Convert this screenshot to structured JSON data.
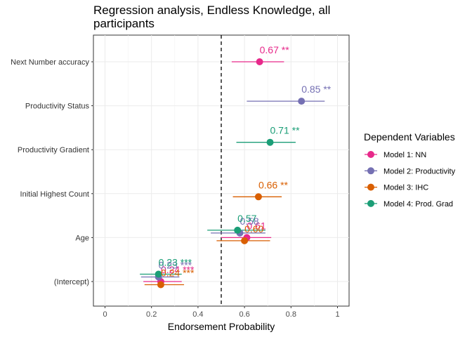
{
  "chart_data": {
    "type": "scatter",
    "title_lines": [
      "Regression analysis, Endless Knowledge, all",
      "participants"
    ],
    "xlabel": "Endorsement Probability",
    "ylabel": "",
    "xlim": [
      0,
      1
    ],
    "xticks": [
      "0",
      "0.2",
      "0.4",
      "0.6",
      "0.8",
      "1"
    ],
    "reference_line_x": 0.5,
    "grid": true,
    "categories": [
      "Next Number accuracy",
      "Productivity Status",
      "Productivity Gradient",
      "Initial Highest Count",
      "Age",
      "(Intercept)"
    ],
    "legend_title": "Dependent Variables",
    "legend_position": "right",
    "series": [
      {
        "name": "Model 1: NN",
        "color": "#e7298a",
        "points": [
          {
            "category": "Next Number accuracy",
            "x": 0.665,
            "lo": 0.545,
            "hi": 0.77,
            "label": "0.67 **"
          },
          {
            "category": "Age",
            "x": 0.61,
            "lo": 0.5,
            "hi": 0.715,
            "label": "0.61"
          },
          {
            "category": "(Intercept)",
            "x": 0.24,
            "lo": 0.165,
            "hi": 0.33,
            "label": "0.24 ***"
          }
        ]
      },
      {
        "name": "Model 2: Productivity",
        "color": "#7570b3",
        "points": [
          {
            "category": "Productivity Status",
            "x": 0.845,
            "lo": 0.61,
            "hi": 0.945,
            "label": "0.85 **"
          },
          {
            "category": "Age",
            "x": 0.58,
            "lo": 0.455,
            "hi": 0.69,
            "label": "0.58"
          },
          {
            "category": "(Intercept)",
            "x": 0.23,
            "lo": 0.155,
            "hi": 0.32,
            "label": "0.23 ***"
          }
        ]
      },
      {
        "name": "Model 3: IHC",
        "color": "#d95f02",
        "points": [
          {
            "category": "Initial Highest Count",
            "x": 0.66,
            "lo": 0.55,
            "hi": 0.76,
            "label": "0.66 **"
          },
          {
            "category": "Age",
            "x": 0.6,
            "lo": 0.48,
            "hi": 0.71,
            "label": "0.60"
          },
          {
            "category": "(Intercept)",
            "x": 0.24,
            "lo": 0.17,
            "hi": 0.34,
            "label": "0.24 ***"
          }
        ]
      },
      {
        "name": "Model 4: Prod. Grad",
        "color": "#1b9e77",
        "points": [
          {
            "category": "Productivity Gradient",
            "x": 0.71,
            "lo": 0.565,
            "hi": 0.82,
            "label": "0.71 **"
          },
          {
            "category": "Age",
            "x": 0.57,
            "lo": 0.44,
            "hi": 0.69,
            "label": "0.57"
          },
          {
            "category": "(Intercept)",
            "x": 0.23,
            "lo": 0.15,
            "hi": 0.33,
            "label": "0.23 ***"
          }
        ]
      }
    ]
  }
}
